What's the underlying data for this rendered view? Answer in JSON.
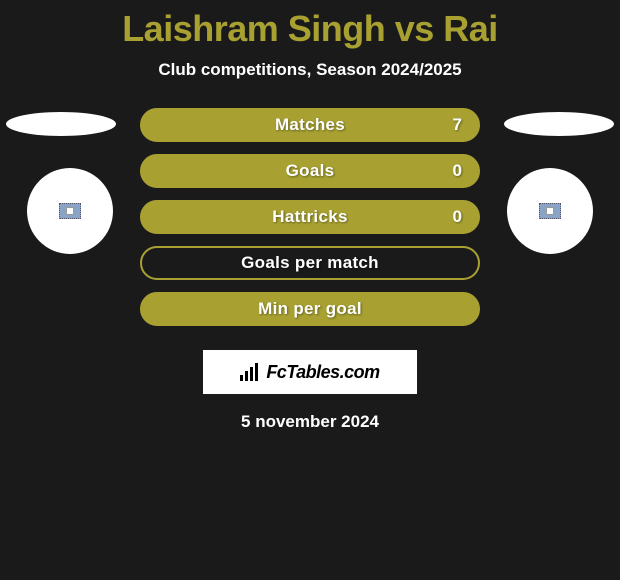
{
  "title": "Laishram Singh vs Rai",
  "subtitle": "Club competitions, Season 2024/2025",
  "rows": [
    {
      "label": "Matches",
      "right": "7",
      "filled": true
    },
    {
      "label": "Goals",
      "right": "0",
      "filled": true
    },
    {
      "label": "Hattricks",
      "right": "0",
      "filled": true
    },
    {
      "label": "Goals per match",
      "right": "",
      "filled": false
    },
    {
      "label": "Min per goal",
      "right": "",
      "filled": true
    }
  ],
  "logo_text": "FcTables.com",
  "date": "5 november 2024",
  "colors": {
    "accent": "#a8a132",
    "background": "#1a1a1a",
    "text": "#ffffff"
  }
}
